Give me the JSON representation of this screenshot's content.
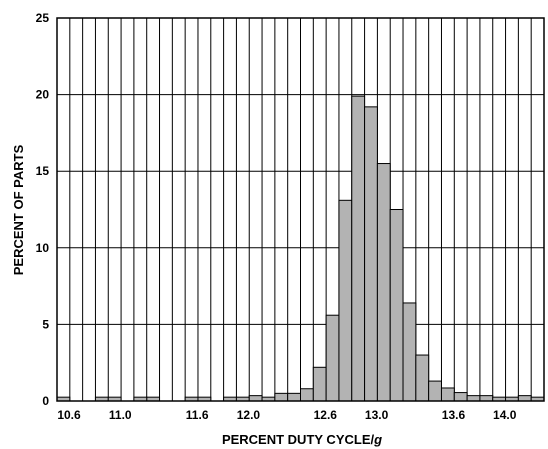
{
  "chart_data": {
    "type": "bar",
    "title": "",
    "xlabel": "PERCENT DUTY CYCLE/",
    "xlabel_suffix": "g",
    "ylabel": "PERCENT OF PARTS",
    "xlim": [
      10.6,
      14.4
    ],
    "ylim": [
      0,
      25
    ],
    "bin_width": 0.1,
    "bin_starts": [
      10.6,
      10.7,
      10.8,
      10.9,
      11.0,
      11.1,
      11.2,
      11.3,
      11.4,
      11.5,
      11.6,
      11.7,
      11.8,
      11.9,
      12.0,
      12.1,
      12.2,
      12.3,
      12.4,
      12.5,
      12.6,
      12.7,
      12.8,
      12.9,
      13.0,
      13.1,
      13.2,
      13.3,
      13.4,
      13.5,
      13.6,
      13.7,
      13.8,
      13.9,
      14.0,
      14.1,
      14.2,
      14.3
    ],
    "values": [
      0.25,
      0,
      0,
      0.25,
      0.25,
      0,
      0.25,
      0.25,
      0.35,
      0.25,
      0.5,
      0.5,
      0.8,
      2.2,
      5.6,
      13.1,
      19.9,
      19.2,
      15.5,
      12.5,
      6.4,
      3.0,
      1.3,
      0.85,
      0.55,
      0.35,
      0.35,
      0.25,
      0.25,
      0.35,
      0.25
    ],
    "values_offset": 7,
    "xticks": [
      "10.6",
      "11.0",
      "11.6",
      "12.0",
      "12.6",
      "13.0",
      "13.6",
      "14.0"
    ],
    "xtick_values": [
      10.6,
      11.0,
      11.6,
      12.0,
      12.6,
      13.0,
      13.6,
      14.0
    ],
    "yticks": [
      "0",
      "5",
      "10",
      "15",
      "20",
      "25"
    ],
    "ytick_values": [
      0,
      5,
      10,
      15,
      20,
      25
    ],
    "grid": true,
    "bar_color": "#b3b3b3",
    "bar_edge_color": "#000000",
    "grid_color": "#000000"
  }
}
